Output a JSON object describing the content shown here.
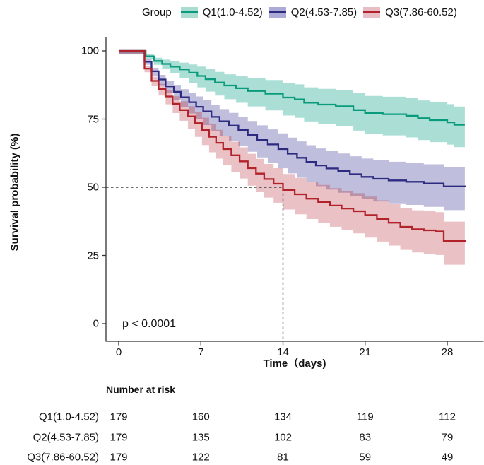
{
  "legend": {
    "title": "Group",
    "items": [
      {
        "label": "Q1(1.0-4.52)",
        "color": "#0a9b7d",
        "fill": "#abdcd1"
      },
      {
        "label": "Q2(4.53-7.85)",
        "color": "#2d2b80",
        "fill": "#acabd5"
      },
      {
        "label": "Q3(7.86-60.52)",
        "color": "#b2222a",
        "fill": "#e9bdc4"
      }
    ]
  },
  "chart_data": {
    "type": "line",
    "subtype": "kaplan-meier-step-with-ci",
    "title": "",
    "xlabel": "Time（days)",
    "ylabel": "Survival probability (%)",
    "annotation": "p < 0.0001",
    "x_ticks": [
      0,
      7,
      14,
      21,
      28
    ],
    "y_ticks": [
      100,
      75,
      50,
      25,
      0
    ],
    "xlim": [
      0,
      29.8
    ],
    "ylim": [
      0,
      100
    ],
    "grid": false,
    "legend_position": "top",
    "median_marker": {
      "day": 14,
      "pct": 50,
      "style": "dashed"
    },
    "axis_color": "#333333",
    "dash_color": "#3f3f3f",
    "series": [
      {
        "name": "Q1(1.0-4.52)",
        "color": "#0a9b7d",
        "band_color": "rgba(0,158,131,0.33)",
        "steps": [
          [
            0,
            100
          ],
          [
            2.3,
            98
          ],
          [
            3,
            96.3
          ],
          [
            3.7,
            95.2
          ],
          [
            4.4,
            94.2
          ],
          [
            5.2,
            93.2
          ],
          [
            6,
            92
          ],
          [
            6.7,
            90.8
          ],
          [
            7.4,
            89.6
          ],
          [
            8.2,
            88.4
          ],
          [
            9,
            87.3
          ],
          [
            10,
            86.3
          ],
          [
            11,
            85.3
          ],
          [
            12.5,
            84.3
          ],
          [
            14,
            82.9
          ],
          [
            15,
            82.2
          ],
          [
            15.8,
            81
          ],
          [
            17,
            80.3
          ],
          [
            18.5,
            79.7
          ],
          [
            20,
            78.3
          ],
          [
            21,
            77.2
          ],
          [
            22.5,
            76.8
          ],
          [
            24.5,
            76.2
          ],
          [
            25.5,
            75.3
          ],
          [
            26.5,
            74.6
          ],
          [
            28,
            73.8
          ],
          [
            28.6,
            72.9
          ],
          [
            29.5,
            72.9
          ]
        ],
        "ci_halfwidth": [
          [
            2.3,
            0.8
          ],
          [
            7,
            4
          ],
          [
            14,
            6
          ],
          [
            21,
            7
          ],
          [
            29.5,
            7.5
          ]
        ]
      },
      {
        "name": "Q2(4.53-7.85)",
        "color": "#2d2b80",
        "band_color": "rgba(60,57,152,0.33)",
        "steps": [
          [
            0,
            100
          ],
          [
            2.2,
            96
          ],
          [
            2.8,
            92.5
          ],
          [
            3.4,
            89.5
          ],
          [
            4,
            87
          ],
          [
            4.7,
            85
          ],
          [
            5.3,
            83
          ],
          [
            6,
            81.2
          ],
          [
            6.6,
            79.5
          ],
          [
            7.2,
            77.8
          ],
          [
            7.9,
            75.8
          ],
          [
            8.6,
            74.2
          ],
          [
            9.4,
            72.6
          ],
          [
            10.2,
            71
          ],
          [
            11,
            69.2
          ],
          [
            11.8,
            67.4
          ],
          [
            12.7,
            65.7
          ],
          [
            13.6,
            64
          ],
          [
            14.4,
            62.3
          ],
          [
            15.2,
            60.8
          ],
          [
            16,
            59.3
          ],
          [
            16.8,
            58
          ],
          [
            17.7,
            56.9
          ],
          [
            18.7,
            55.9
          ],
          [
            19.7,
            54.8
          ],
          [
            20.7,
            53.8
          ],
          [
            21.7,
            53.1
          ],
          [
            23,
            52.5
          ],
          [
            24.5,
            52
          ],
          [
            26,
            51.4
          ],
          [
            27.7,
            50.3
          ],
          [
            29.5,
            50.2
          ]
        ],
        "ci_halfwidth": [
          [
            2.2,
            1
          ],
          [
            7,
            4.5
          ],
          [
            14,
            6.5
          ],
          [
            21,
            7.5
          ],
          [
            29.5,
            8
          ]
        ]
      },
      {
        "name": "Q3(7.86-60.52)",
        "color": "#b2222a",
        "band_color": "rgba(178,34,44,0.28)",
        "steps": [
          [
            0,
            100
          ],
          [
            2.2,
            93.5
          ],
          [
            2.8,
            89
          ],
          [
            3.4,
            86
          ],
          [
            4,
            83.3
          ],
          [
            4.6,
            80.6
          ],
          [
            5.2,
            78.3
          ],
          [
            5.9,
            76
          ],
          [
            6.5,
            73.5
          ],
          [
            7.1,
            71
          ],
          [
            7.7,
            68.5
          ],
          [
            8.3,
            66.3
          ],
          [
            8.9,
            64
          ],
          [
            9.6,
            61.7
          ],
          [
            10.3,
            59.5
          ],
          [
            11,
            57
          ],
          [
            11.7,
            55
          ],
          [
            12.4,
            53
          ],
          [
            13.2,
            51.3
          ],
          [
            14,
            49
          ],
          [
            15,
            47.4
          ],
          [
            16,
            45.8
          ],
          [
            17,
            44.6
          ],
          [
            18,
            43.3
          ],
          [
            19,
            42.2
          ],
          [
            20,
            41.2
          ],
          [
            21,
            39.8
          ],
          [
            22,
            38.4
          ],
          [
            23,
            37
          ],
          [
            24,
            35.5
          ],
          [
            25,
            34.6
          ],
          [
            26,
            34.2
          ],
          [
            27,
            33.8
          ],
          [
            27.7,
            30.3
          ],
          [
            29.5,
            30
          ]
        ],
        "ci_halfwidth": [
          [
            2.2,
            1.2
          ],
          [
            7,
            5
          ],
          [
            14,
            6.5
          ],
          [
            21,
            7.5
          ],
          [
            29.5,
            8
          ]
        ]
      }
    ]
  },
  "risk_table": {
    "title": "Number at risk",
    "time_points": [
      0,
      7,
      14,
      21,
      28
    ],
    "rows": [
      {
        "label": "Q1(1.0-4.52)",
        "counts": [
          179,
          160,
          134,
          119,
          112
        ]
      },
      {
        "label": "Q2(4.53-7.85)",
        "counts": [
          179,
          135,
          102,
          83,
          79
        ]
      },
      {
        "label": "Q3(7.86-60.52)",
        "counts": [
          179,
          122,
          81,
          59,
          49
        ]
      }
    ]
  }
}
